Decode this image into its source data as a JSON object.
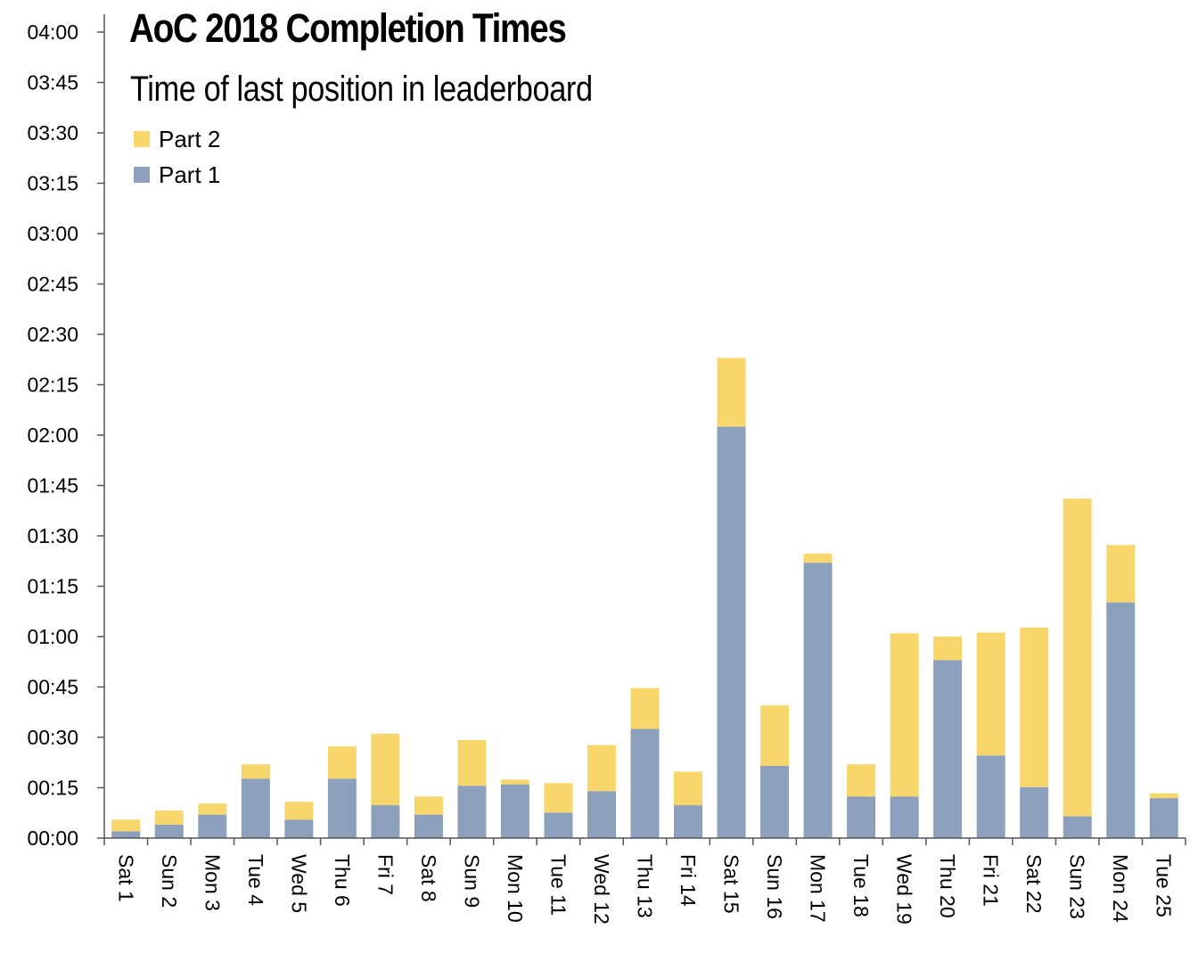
{
  "chart_data": {
    "type": "bar",
    "stacked": true,
    "title": "AoC 2018 Completion Times",
    "subtitle": "Time of last position in leaderboard",
    "ylim": [
      0,
      240
    ],
    "yticks": [
      "00:00",
      "00:15",
      "00:30",
      "00:45",
      "01:00",
      "01:15",
      "01:30",
      "01:45",
      "02:00",
      "02:15",
      "02:30",
      "02:45",
      "03:00",
      "03:15",
      "03:30",
      "03:45",
      "04:00"
    ],
    "legend_position": "top-left",
    "categories": [
      "Sat 1",
      "Sun 2",
      "Mon 3",
      "Tue 4",
      "Wed 5",
      "Thu 6",
      "Fri 7",
      "Sat 8",
      "Sun 9",
      "Mon 10",
      "Tue 11",
      "Wed 12",
      "Thu 13",
      "Fri 14",
      "Sat 15",
      "Sun 16",
      "Mon 17",
      "Tue 18",
      "Wed 19",
      "Thu 20",
      "Fri 21",
      "Sat 22",
      "Sun 23",
      "Mon 24",
      "Tue 25"
    ],
    "series": [
      {
        "name": "Part 1",
        "color": "#8c9fbd",
        "values": [
          2,
          4,
          7,
          17.7,
          5.5,
          17.7,
          9.8,
          7,
          15.6,
          16,
          7.6,
          14,
          32.5,
          9.8,
          122.5,
          21.5,
          82,
          12.4,
          12.4,
          53,
          24.6,
          15.2,
          6.5,
          70.2,
          11.9
        ]
      },
      {
        "name": "Part 2",
        "color": "#f7d76b",
        "values": [
          3.5,
          4.2,
          3.3,
          4.3,
          5.3,
          9.6,
          21.3,
          5.4,
          13.6,
          1.4,
          8.8,
          13.7,
          12.2,
          10,
          20.5,
          18,
          2.7,
          9.6,
          48.6,
          7,
          36.6,
          47.5,
          94.6,
          17.1,
          1.4
        ]
      }
    ]
  }
}
